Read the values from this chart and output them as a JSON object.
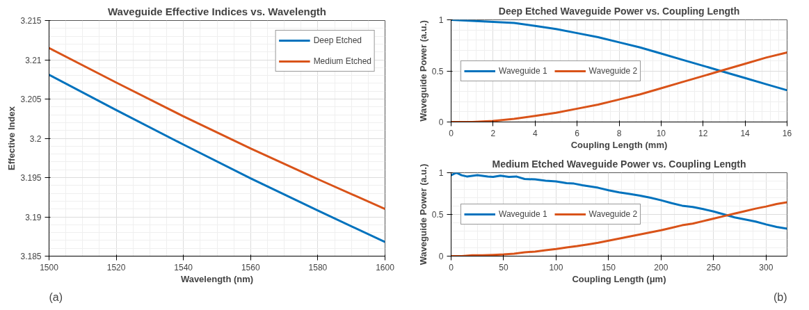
{
  "chart_data": [
    {
      "type": "line",
      "title": "Waveguide Effective Indices vs. Wavelength",
      "xlabel": "Wavelength (nm)",
      "ylabel": "Effective Index",
      "x": [
        1500,
        1520,
        1540,
        1560,
        1580,
        1600
      ],
      "xlim": [
        1500,
        1600
      ],
      "xticks": [
        1500,
        1520,
        1540,
        1560,
        1580,
        1600
      ],
      "ylim": [
        3.185,
        3.215
      ],
      "yticks": [
        3.185,
        3.19,
        3.195,
        3.2,
        3.205,
        3.21,
        3.215
      ],
      "grid": true,
      "legend": "top right",
      "line_style": "solid",
      "annotations": [
        "(a)"
      ],
      "series": [
        {
          "name": "Deep Etched",
          "color": "#0072bd",
          "values": [
            3.2081,
            3.2036,
            3.1992,
            3.1949,
            3.1908,
            3.1868
          ]
        },
        {
          "name": "Medium Etched",
          "color": "#d95319",
          "values": [
            3.2115,
            3.2071,
            3.2028,
            3.1987,
            3.1948,
            3.191
          ]
        }
      ]
    },
    {
      "type": "line",
      "title": "Deep Etched Waveguide Power vs. Coupling Length",
      "xlabel": "Coupling Length (mm)",
      "ylabel": "Waveguide Power (a.u.)",
      "x": [
        0,
        1,
        2,
        3,
        4,
        5,
        6,
        7,
        8,
        9,
        10,
        11,
        12,
        13,
        14,
        15,
        16
      ],
      "xlim": [
        0,
        16
      ],
      "xticks": [
        0,
        2,
        4,
        6,
        8,
        10,
        12,
        14,
        16
      ],
      "ylim": [
        0,
        1
      ],
      "yticks": [
        0,
        0.5,
        1
      ],
      "grid": true,
      "legend": "left",
      "line_style": "solid",
      "series": [
        {
          "name": "Waveguide 1",
          "color": "#0072bd",
          "values": [
            1.0,
            0.99,
            0.98,
            0.97,
            0.94,
            0.91,
            0.87,
            0.83,
            0.78,
            0.73,
            0.67,
            0.61,
            0.55,
            0.49,
            0.43,
            0.37,
            0.31
          ]
        },
        {
          "name": "Waveguide 2",
          "color": "#d95319",
          "values": [
            0.0,
            0.0,
            0.01,
            0.03,
            0.06,
            0.09,
            0.13,
            0.17,
            0.22,
            0.27,
            0.33,
            0.39,
            0.45,
            0.51,
            0.57,
            0.63,
            0.68
          ]
        }
      ]
    },
    {
      "type": "line",
      "title": "Medium Etched Waveguide Power vs. Coupling Length",
      "xlabel": "Coupling Length (μm)",
      "ylabel": "Waveguide Power (a.u.)",
      "xlim": [
        0,
        320
      ],
      "xticks": [
        0,
        50,
        100,
        150,
        200,
        250,
        300
      ],
      "ylim": [
        0,
        1
      ],
      "yticks": [
        0,
        0.5,
        1
      ],
      "grid": true,
      "legend": "left",
      "line_style": "solid",
      "annotations": [
        "(b)"
      ],
      "series": [
        {
          "name": "Waveguide 1",
          "color": "#0072bd",
          "x": [
            0,
            5,
            10,
            15,
            25,
            35,
            40,
            47,
            55,
            62,
            70,
            80,
            90,
            100,
            110,
            117,
            125,
            140,
            150,
            160,
            170,
            180,
            190,
            200,
            210,
            220,
            230,
            240,
            250,
            260,
            270,
            280,
            290,
            300,
            310,
            320
          ],
          "values": [
            0.97,
            1.0,
            0.97,
            0.955,
            0.97,
            0.955,
            0.95,
            0.965,
            0.95,
            0.955,
            0.925,
            0.92,
            0.905,
            0.895,
            0.875,
            0.87,
            0.85,
            0.82,
            0.79,
            0.765,
            0.745,
            0.725,
            0.7,
            0.67,
            0.635,
            0.605,
            0.59,
            0.565,
            0.535,
            0.5,
            0.465,
            0.44,
            0.415,
            0.38,
            0.35,
            0.33
          ]
        },
        {
          "name": "Waveguide 2",
          "color": "#d95319",
          "x": [
            0,
            10,
            20,
            30,
            40,
            50,
            60,
            70,
            80,
            90,
            100,
            110,
            120,
            130,
            140,
            150,
            160,
            170,
            180,
            190,
            200,
            210,
            220,
            230,
            240,
            250,
            260,
            270,
            280,
            290,
            300,
            310,
            320
          ],
          "values": [
            0.0,
            0.0,
            0.01,
            0.01,
            0.015,
            0.02,
            0.03,
            0.045,
            0.055,
            0.07,
            0.085,
            0.105,
            0.12,
            0.14,
            0.16,
            0.185,
            0.21,
            0.235,
            0.26,
            0.285,
            0.31,
            0.34,
            0.37,
            0.39,
            0.42,
            0.45,
            0.48,
            0.51,
            0.54,
            0.57,
            0.595,
            0.625,
            0.645
          ]
        }
      ]
    }
  ]
}
